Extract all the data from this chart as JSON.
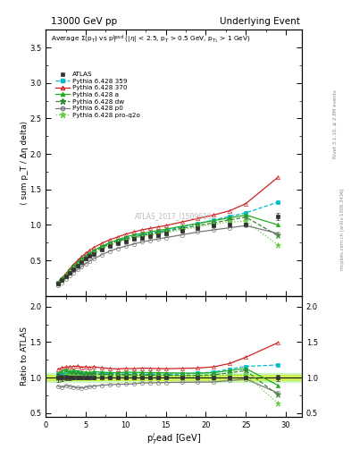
{
  "title_left": "13000 GeV pp",
  "title_right": "Underlying Event",
  "ylabel_main": "⟨ sum p_T / Δη delta⟩",
  "ylabel_ratio": "Ratio to ATLAS",
  "xlabel": "p_T^{l}ead [GeV]",
  "watermark": "ATLAS_2017_I1509919",
  "ylim_main": [
    0.0,
    3.75
  ],
  "ylim_ratio": [
    0.45,
    2.15
  ],
  "yticks_main": [
    0.5,
    1.0,
    1.5,
    2.0,
    2.5,
    3.0,
    3.5
  ],
  "yticks_ratio": [
    0.5,
    1.0,
    1.5,
    2.0
  ],
  "xlim": [
    0,
    32
  ],
  "xticks": [
    0,
    5,
    10,
    15,
    20,
    25,
    30
  ],
  "atlas_x": [
    1.5,
    2.0,
    2.5,
    3.0,
    3.5,
    4.0,
    4.5,
    5.0,
    5.5,
    6.0,
    7.0,
    8.0,
    9.0,
    10.0,
    11.0,
    12.0,
    13.0,
    14.0,
    15.0,
    17.0,
    19.0,
    21.0,
    23.0,
    25.0,
    29.0
  ],
  "atlas_y": [
    0.17,
    0.22,
    0.27,
    0.33,
    0.38,
    0.43,
    0.48,
    0.52,
    0.56,
    0.59,
    0.65,
    0.7,
    0.74,
    0.77,
    0.8,
    0.82,
    0.84,
    0.86,
    0.88,
    0.92,
    0.96,
    0.99,
    1.0,
    1.01,
    1.12
  ],
  "atlas_yerr": [
    0.01,
    0.01,
    0.01,
    0.01,
    0.01,
    0.01,
    0.01,
    0.01,
    0.01,
    0.01,
    0.01,
    0.01,
    0.01,
    0.01,
    0.01,
    0.01,
    0.01,
    0.01,
    0.01,
    0.01,
    0.01,
    0.02,
    0.02,
    0.02,
    0.05
  ],
  "p359_x": [
    1.5,
    2.0,
    2.5,
    3.0,
    3.5,
    4.0,
    4.5,
    5.0,
    5.5,
    6.0,
    7.0,
    8.0,
    9.0,
    10.0,
    11.0,
    12.0,
    13.0,
    14.0,
    15.0,
    17.0,
    19.0,
    21.0,
    23.0,
    25.0,
    29.0
  ],
  "p359_y": [
    0.18,
    0.23,
    0.29,
    0.35,
    0.41,
    0.46,
    0.51,
    0.55,
    0.59,
    0.63,
    0.69,
    0.74,
    0.78,
    0.81,
    0.84,
    0.86,
    0.88,
    0.9,
    0.92,
    0.97,
    1.02,
    1.07,
    1.12,
    1.17,
    1.32
  ],
  "p370_x": [
    1.5,
    2.0,
    2.5,
    3.0,
    3.5,
    4.0,
    4.5,
    5.0,
    5.5,
    6.0,
    7.0,
    8.0,
    9.0,
    10.0,
    11.0,
    12.0,
    13.0,
    14.0,
    15.0,
    17.0,
    19.0,
    21.0,
    23.0,
    25.0,
    29.0
  ],
  "p370_y": [
    0.19,
    0.25,
    0.31,
    0.38,
    0.44,
    0.5,
    0.55,
    0.6,
    0.64,
    0.68,
    0.74,
    0.79,
    0.83,
    0.87,
    0.9,
    0.93,
    0.95,
    0.97,
    0.99,
    1.04,
    1.09,
    1.14,
    1.2,
    1.3,
    1.67
  ],
  "pa_x": [
    1.5,
    2.0,
    2.5,
    3.0,
    3.5,
    4.0,
    4.5,
    5.0,
    5.5,
    6.0,
    7.0,
    8.0,
    9.0,
    10.0,
    11.0,
    12.0,
    13.0,
    14.0,
    15.0,
    17.0,
    19.0,
    21.0,
    23.0,
    25.0,
    29.0
  ],
  "pa_y": [
    0.18,
    0.24,
    0.3,
    0.36,
    0.42,
    0.47,
    0.52,
    0.56,
    0.6,
    0.64,
    0.7,
    0.75,
    0.79,
    0.83,
    0.86,
    0.88,
    0.9,
    0.92,
    0.94,
    0.98,
    1.02,
    1.06,
    1.1,
    1.14,
    1.0
  ],
  "pdw_x": [
    1.5,
    2.0,
    2.5,
    3.0,
    3.5,
    4.0,
    4.5,
    5.0,
    5.5,
    6.0,
    7.0,
    8.0,
    9.0,
    10.0,
    11.0,
    12.0,
    13.0,
    14.0,
    15.0,
    17.0,
    19.0,
    21.0,
    23.0,
    25.0,
    29.0
  ],
  "pdw_y": [
    0.17,
    0.22,
    0.28,
    0.34,
    0.4,
    0.45,
    0.5,
    0.54,
    0.58,
    0.62,
    0.68,
    0.73,
    0.77,
    0.8,
    0.83,
    0.85,
    0.87,
    0.89,
    0.91,
    0.95,
    0.99,
    1.03,
    1.07,
    1.11,
    0.85
  ],
  "pp0_x": [
    1.5,
    2.0,
    2.5,
    3.0,
    3.5,
    4.0,
    4.5,
    5.0,
    5.5,
    6.0,
    7.0,
    8.0,
    9.0,
    10.0,
    11.0,
    12.0,
    13.0,
    14.0,
    15.0,
    17.0,
    19.0,
    21.0,
    23.0,
    25.0,
    29.0
  ],
  "pp0_y": [
    0.15,
    0.19,
    0.24,
    0.29,
    0.33,
    0.37,
    0.41,
    0.45,
    0.49,
    0.52,
    0.58,
    0.63,
    0.67,
    0.7,
    0.73,
    0.76,
    0.78,
    0.8,
    0.82,
    0.86,
    0.9,
    0.93,
    0.96,
    0.99,
    0.88
  ],
  "pproq2o_x": [
    1.5,
    2.0,
    2.5,
    3.0,
    3.5,
    4.0,
    4.5,
    5.0,
    5.5,
    6.0,
    7.0,
    8.0,
    9.0,
    10.0,
    11.0,
    12.0,
    13.0,
    14.0,
    15.0,
    17.0,
    19.0,
    21.0,
    23.0,
    25.0,
    29.0
  ],
  "pproq2o_y": [
    0.17,
    0.22,
    0.28,
    0.34,
    0.39,
    0.44,
    0.49,
    0.53,
    0.57,
    0.6,
    0.66,
    0.71,
    0.75,
    0.78,
    0.81,
    0.83,
    0.85,
    0.87,
    0.89,
    0.93,
    0.97,
    1.01,
    1.04,
    1.05,
    0.72
  ],
  "color_atlas": "#333333",
  "color_359": "#00bbcc",
  "color_370": "#cc2222",
  "color_a": "#22aa22",
  "color_dw": "#338833",
  "color_p0": "#777777",
  "color_proq2o": "#66cc44",
  "band_color_yellow": "#eeee00",
  "band_color_green": "#88ee88",
  "band_alpha": 0.5,
  "band_ylow": 0.96,
  "band_yhigh": 1.04
}
